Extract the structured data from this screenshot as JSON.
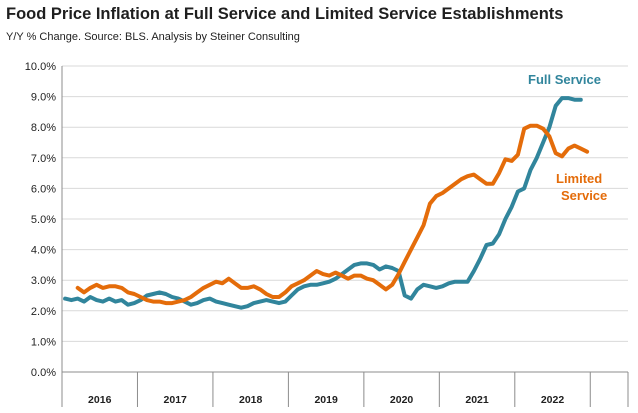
{
  "chart_data": {
    "type": "line",
    "title": "Food Price Inflation at Full Service and Limited Service Establishments",
    "subtitle": "Y/Y % Change.  Source: BLS.  Analysis by Steiner Consulting",
    "ylim": [
      0,
      10
    ],
    "y_ticks": [
      "0.0%",
      "1.0%",
      "2.0%",
      "3.0%",
      "4.0%",
      "5.0%",
      "6.0%",
      "7.0%",
      "8.0%",
      "9.0%",
      "10.0%"
    ],
    "x_ticks": [
      "2016",
      "2017",
      "2018",
      "2019",
      "2020",
      "2021",
      "2022"
    ],
    "xlim_months": 90,
    "grid": true,
    "annotations": {
      "full_service": "Full Service",
      "limited_service_line1": "Limited",
      "limited_service_line2": "Service"
    },
    "series": [
      {
        "name": "Full Service",
        "color": "#31859c",
        "values": [
          2.4,
          2.35,
          2.4,
          2.3,
          2.45,
          2.35,
          2.3,
          2.4,
          2.3,
          2.35,
          2.2,
          2.25,
          2.35,
          2.5,
          2.55,
          2.6,
          2.55,
          2.45,
          2.4,
          2.3,
          2.2,
          2.25,
          2.35,
          2.4,
          2.3,
          2.25,
          2.2,
          2.15,
          2.1,
          2.15,
          2.25,
          2.3,
          2.35,
          2.3,
          2.25,
          2.3,
          2.5,
          2.7,
          2.8,
          2.85,
          2.85,
          2.9,
          2.95,
          3.05,
          3.2,
          3.35,
          3.5,
          3.55,
          3.55,
          3.5,
          3.35,
          3.45,
          3.4,
          3.3,
          2.5,
          2.4,
          2.7,
          2.85,
          2.8,
          2.75,
          2.8,
          2.9,
          2.95,
          2.95,
          2.95,
          3.3,
          3.7,
          4.15,
          4.2,
          4.5,
          5.0,
          5.4,
          5.9,
          6.0,
          6.6,
          7.0,
          7.5,
          8.0,
          8.7,
          8.95,
          8.95,
          8.9,
          8.9
        ],
        "x_start": 0
      },
      {
        "name": "Limited Service",
        "color": "#e46c0a",
        "values": [
          2.75,
          2.6,
          2.75,
          2.85,
          2.75,
          2.8,
          2.8,
          2.75,
          2.6,
          2.55,
          2.45,
          2.35,
          2.3,
          2.3,
          2.25,
          2.25,
          2.3,
          2.35,
          2.45,
          2.6,
          2.75,
          2.85,
          2.95,
          2.9,
          3.05,
          2.9,
          2.75,
          2.75,
          2.8,
          2.7,
          2.55,
          2.45,
          2.45,
          2.6,
          2.8,
          2.9,
          3.0,
          3.15,
          3.3,
          3.2,
          3.15,
          3.25,
          3.15,
          3.05,
          3.15,
          3.15,
          3.05,
          3.0,
          2.85,
          2.7,
          2.85,
          3.2,
          3.6,
          4.0,
          4.4,
          4.8,
          5.5,
          5.75,
          5.85,
          6.0,
          6.15,
          6.3,
          6.4,
          6.45,
          6.3,
          6.15,
          6.15,
          6.5,
          6.95,
          6.9,
          7.1,
          7.95,
          8.05,
          8.05,
          7.95,
          7.7,
          7.15,
          7.05,
          7.3,
          7.4,
          7.3,
          7.2
        ],
        "x_start": 2
      }
    ]
  }
}
